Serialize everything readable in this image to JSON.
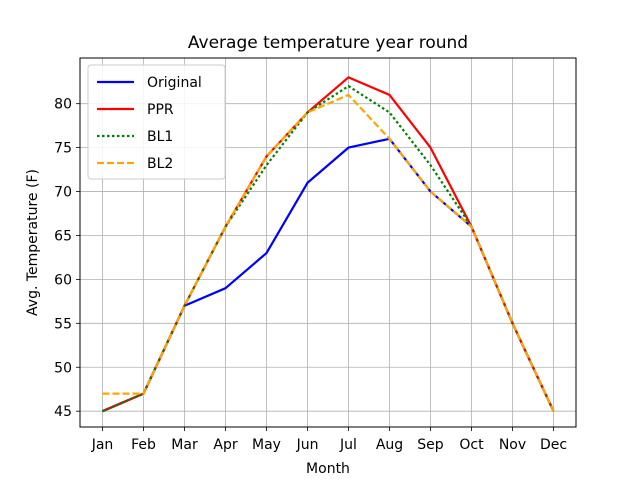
{
  "chart_data": {
    "type": "line",
    "title": "Average temperature year round",
    "xlabel": "Month",
    "ylabel": "Avg. Temperature (F)",
    "categories": [
      "Jan",
      "Feb",
      "Mar",
      "Apr",
      "May",
      "Jun",
      "Jul",
      "Aug",
      "Sep",
      "Oct",
      "Nov",
      "Dec"
    ],
    "ylim": [
      43.2,
      85.2
    ],
    "yticks": [
      45,
      50,
      55,
      60,
      65,
      70,
      75,
      80
    ],
    "grid": true,
    "legend_position": "top-left",
    "series": [
      {
        "name": "Original",
        "color": "#0000ff",
        "style": "solid",
        "values": [
          45,
          47,
          57,
          59,
          63,
          71,
          75,
          76,
          70,
          66,
          55,
          45
        ]
      },
      {
        "name": "PPR",
        "color": "#ff0000",
        "style": "solid",
        "values": [
          45,
          47,
          57,
          66,
          74,
          79,
          83,
          81,
          75,
          66,
          55,
          45
        ]
      },
      {
        "name": "BL1",
        "color": "#008000",
        "style": "dotted",
        "values": [
          45,
          47,
          57,
          66,
          73,
          79,
          82,
          79,
          73,
          66,
          55,
          45
        ]
      },
      {
        "name": "BL2",
        "color": "#ffa500",
        "style": "dashed",
        "values": [
          47,
          47,
          57,
          66,
          74,
          79,
          81,
          76,
          70,
          66,
          55,
          45
        ]
      }
    ]
  }
}
